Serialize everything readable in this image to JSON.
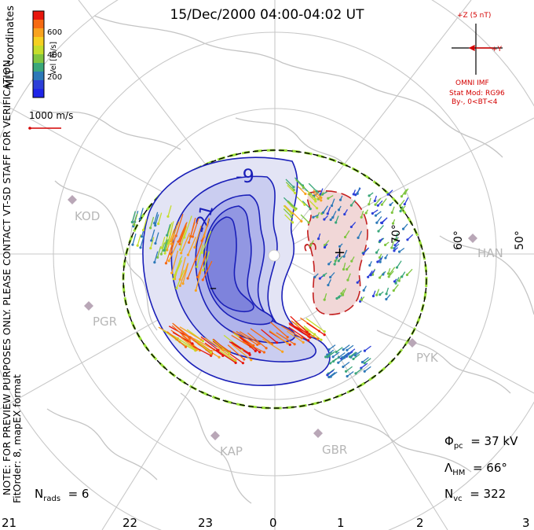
{
  "title": "15/Dec/2000 04:00-04:02 UT",
  "coord_label": "MLT coordinates",
  "preview_note": "NOTE: FOR PREVIEW PURPOSES ONLY. PLEASE CONTACT VT-SD STAFF FOR VERIFICATION.",
  "fit_note": "FitOrder: 8, mapEX format",
  "colorbar": {
    "label": "Vel [m/s]",
    "ticks": [
      "600",
      "400",
      "200"
    ],
    "colors": [
      "#e8160c",
      "#f66a12",
      "#f8a21e",
      "#f5d021",
      "#c5dd2b",
      "#7fc540",
      "#3aa77a",
      "#2d79b8",
      "#2c3fd8",
      "#1f25e8"
    ]
  },
  "scale": {
    "label": "1000 m/s"
  },
  "imf": {
    "z_label": "+Z (5 nT)",
    "y_label": "+Y",
    "source": "OMNI IMF",
    "stat_model": "Stat Mod: RG96",
    "condition": "By-, 0<BT<4"
  },
  "stations": [
    "KOD",
    "PGR",
    "KAP",
    "GBR",
    "PYK",
    "HAN"
  ],
  "latitudes": [
    "70°",
    "60°",
    "50°"
  ],
  "contours": {
    "neg_label": "-9",
    "neg_label2": "-21",
    "pos_label": "3",
    "min_marker": "–",
    "max_marker": "+"
  },
  "mlt_labels": [
    "21",
    "22",
    "23",
    "0",
    "1",
    "2",
    "3"
  ],
  "stats": {
    "phi_pc": "Φ",
    "phi_sub": "pc",
    "phi_value": "= 37 kV",
    "lambda": "Λ",
    "lambda_sub": "HM",
    "lambda_value": "= 66°",
    "nvc": "N",
    "nvc_sub": "vc",
    "nvc_value": "= 322",
    "nrads": "N",
    "nrads_sub": "rads",
    "nrads_value": "= 6"
  },
  "colors": {
    "negative": "#1a1fb8",
    "positive": "#c31f1f",
    "boundary": "#000000",
    "grid": "#c8c8c8"
  }
}
